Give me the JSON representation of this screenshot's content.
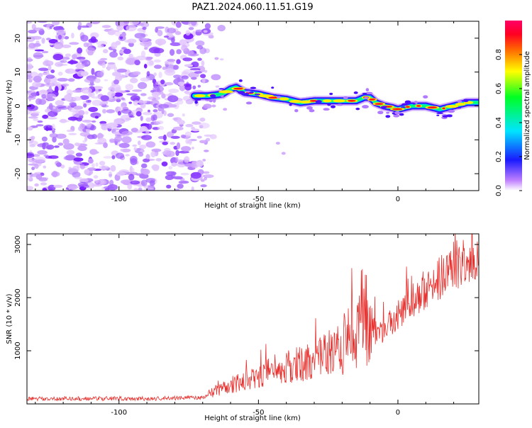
{
  "title": "PAZ1.2024.060.11.51.G19",
  "colors": {
    "snr_line": "#e8312e",
    "axis": "#000000",
    "grid": "#000000",
    "background": "#ffffff"
  },
  "chart_data": [
    {
      "type": "heatmap",
      "title": "PAZ1.2024.060.11.51.G19",
      "xlabel": "Height of straight line (km)",
      "ylabel": "Frequency (Hz)",
      "xlim": [
        -133,
        29
      ],
      "ylim": [
        -25,
        25
      ],
      "x_ticks": [
        -100,
        -50,
        0
      ],
      "y_ticks": [
        -20,
        -10,
        0,
        10,
        20
      ],
      "colorbar": {
        "label": "Normalized spectral amplitude",
        "range": [
          0,
          1
        ],
        "ticks": [
          "0.0",
          "0.2",
          "0.4",
          "0.6",
          "0.8"
        ],
        "colormap": "rainbow (purple → blue → cyan → green → yellow → red → magenta)"
      },
      "noise_region_x": [
        -133,
        -68
      ],
      "ridge": {
        "x": [
          -73,
          -68,
          -63,
          -60,
          -58,
          -55,
          -50,
          -45,
          -40,
          -35,
          -30,
          -25,
          -20,
          -15,
          -12,
          -10,
          -8,
          -5,
          -2,
          0,
          5,
          10,
          15,
          20,
          25,
          29
        ],
        "frequency_hz": [
          3,
          3,
          3.5,
          5,
          5.5,
          4,
          3.5,
          2.5,
          2,
          1,
          1.5,
          1.5,
          1.5,
          1.5,
          2.5,
          2.5,
          1,
          0,
          -0.5,
          -1,
          0,
          0,
          -1,
          0,
          1,
          1
        ]
      }
    },
    {
      "type": "line",
      "xlabel": "Height of straight line (km)",
      "ylabel": "SNR (10 * v/v)",
      "xlim": [
        -133,
        29
      ],
      "ylim": [
        0,
        3200
      ],
      "x_ticks": [
        -100,
        -50,
        0
      ],
      "y_ticks": [
        1000,
        2000,
        3000
      ],
      "series": [
        {
          "x": [
            -133,
            -120,
            -110,
            -100,
            -90,
            -80,
            -70,
            -65,
            -60,
            -55,
            -50,
            -45,
            -40,
            -35,
            -30,
            -25,
            -20,
            -15,
            -12,
            -10,
            -5,
            0,
            5,
            10,
            15,
            20,
            25,
            29
          ],
          "values": [
            100,
            100,
            100,
            100,
            100,
            110,
            120,
            250,
            350,
            450,
            500,
            650,
            700,
            750,
            850,
            950,
            1100,
            1300,
            1550,
            1300,
            1400,
            1700,
            1950,
            2150,
            2350,
            2600,
            2750,
            2800
          ]
        }
      ]
    }
  ]
}
